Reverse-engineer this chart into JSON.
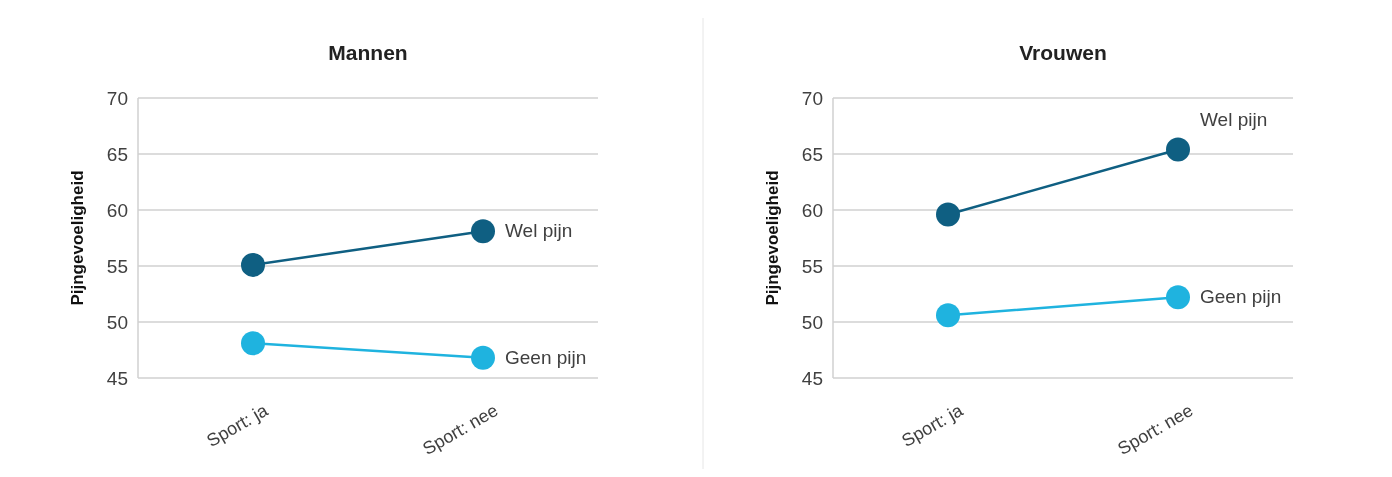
{
  "chart_data": [
    {
      "type": "line",
      "title": "Mannen",
      "ylabel": "Pijngevoeligheid",
      "categories": [
        "Sport: ja",
        "Sport: nee"
      ],
      "ylim": [
        45,
        70
      ],
      "yticks": [
        45,
        50,
        55,
        60,
        65,
        70
      ],
      "grid": "y",
      "marker": "circle",
      "line_style": "solid",
      "series": [
        {
          "name": "Wel pijn",
          "color": "#0f5f82",
          "values": [
            55.1,
            58.1
          ]
        },
        {
          "name": "Geen pijn",
          "color": "#1fb3df",
          "values": [
            48.1,
            46.8
          ]
        }
      ]
    },
    {
      "type": "line",
      "title": "Vrouwen",
      "ylabel": "Pijngevoeligheid",
      "categories": [
        "Sport: ja",
        "Sport: nee"
      ],
      "ylim": [
        45,
        70
      ],
      "yticks": [
        45,
        50,
        55,
        60,
        65,
        70
      ],
      "grid": "y",
      "marker": "circle",
      "line_style": "solid",
      "series": [
        {
          "name": "Wel pijn",
          "color": "#0f5f82",
          "values": [
            59.6,
            65.4
          ]
        },
        {
          "name": "Geen pijn",
          "color": "#1fb3df",
          "values": [
            50.6,
            52.2
          ]
        }
      ]
    }
  ]
}
